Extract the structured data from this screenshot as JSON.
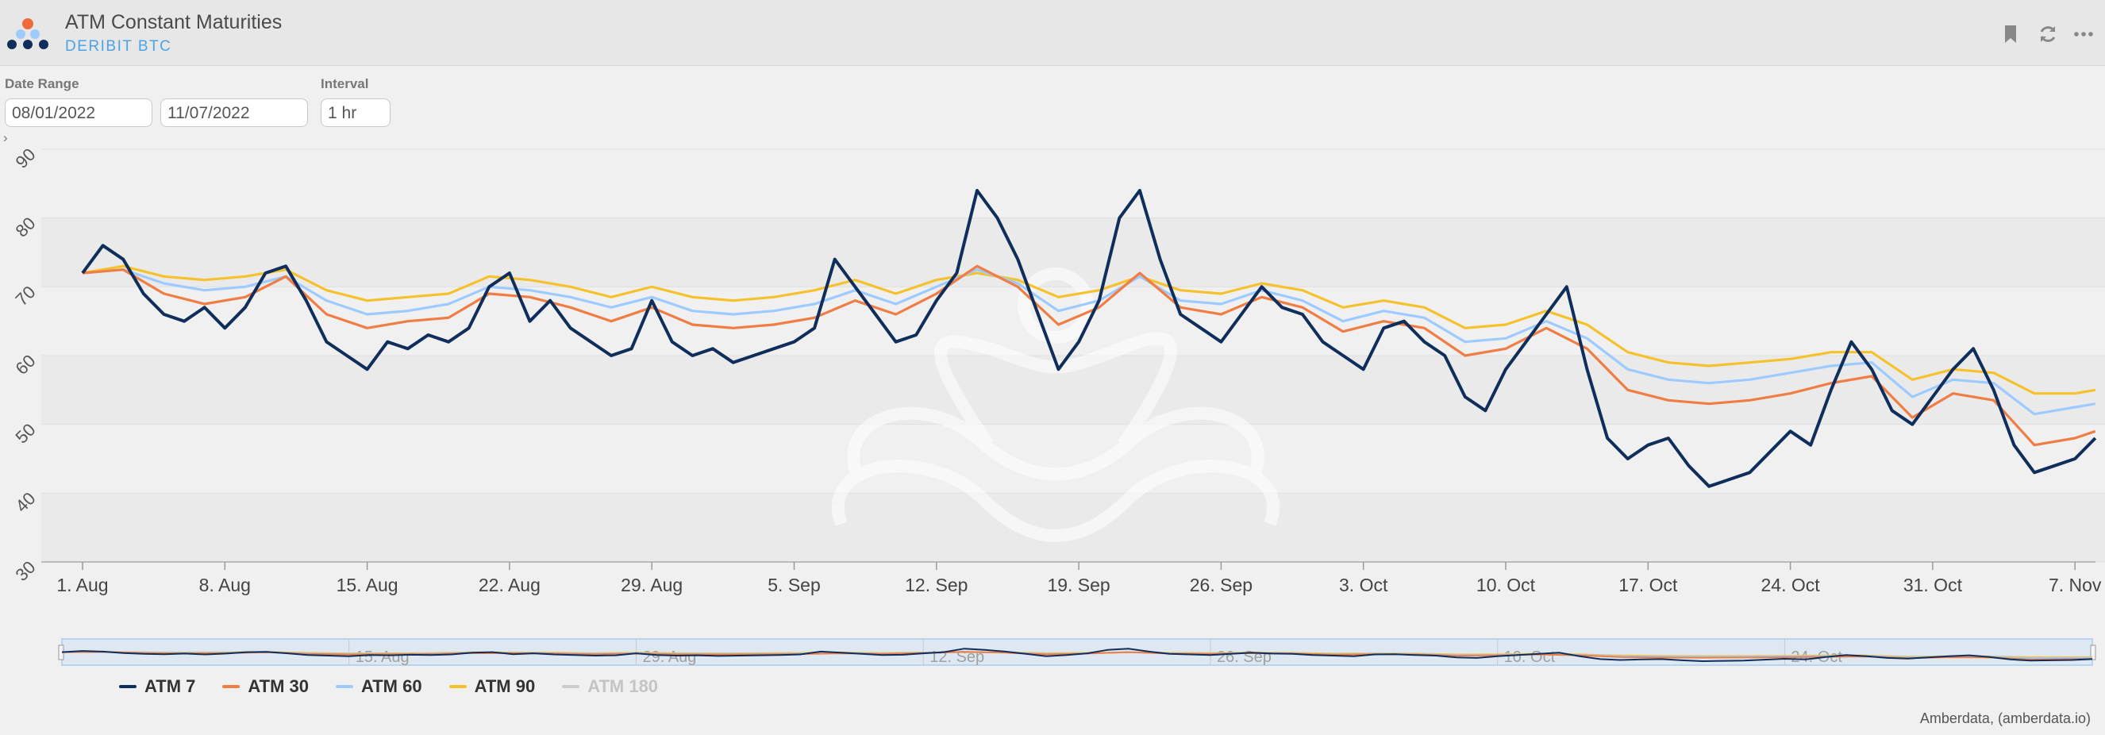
{
  "header": {
    "title": "ATM Constant Maturities",
    "subtitle": "DERIBIT BTC",
    "icons": [
      "bookmark-icon",
      "refresh-icon",
      "more-icon"
    ]
  },
  "controls": {
    "date_range_label": "Date Range",
    "start_date": "08/01/2022",
    "end_date": "11/07/2022",
    "interval_label": "Interval",
    "interval_value": "1 hr"
  },
  "colors": {
    "atm7": "#0f2e5c",
    "atm30": "#f07d44",
    "atm60": "#9ecbff",
    "atm90": "#f5c22e",
    "atm180": "#c8c8c8"
  },
  "chart_data": {
    "type": "line",
    "ylim": [
      30,
      90
    ],
    "y_ticks": [
      "30",
      "40",
      "50",
      "60",
      "70",
      "80",
      "90"
    ],
    "x_range": [
      "2022-08-01",
      "2022-11-08"
    ],
    "x_ticks": [
      "1. Aug",
      "8. Aug",
      "15. Aug",
      "22. Aug",
      "29. Aug",
      "5. Sep",
      "12. Sep",
      "19. Sep",
      "26. Sep",
      "3. Oct",
      "10. Oct",
      "17. Oct",
      "24. Oct",
      "31. Oct",
      "7. Nov"
    ],
    "x_tick_dates": [
      "2022-08-01",
      "2022-08-08",
      "2022-08-15",
      "2022-08-22",
      "2022-08-29",
      "2022-09-05",
      "2022-09-12",
      "2022-09-19",
      "2022-09-26",
      "2022-10-03",
      "2022-10-10",
      "2022-10-17",
      "2022-10-24",
      "2022-10-31",
      "2022-11-07"
    ],
    "navigator_ticks": [
      "15. Aug",
      "29. Aug",
      "12. Sep",
      "26. Sep",
      "10. Oct",
      "24. Oct"
    ],
    "navigator_tick_dates": [
      "2022-08-15",
      "2022-08-29",
      "2022-09-12",
      "2022-09-26",
      "2022-10-10",
      "2022-10-24"
    ],
    "grid": true,
    "legend_position": "bottom-left",
    "series": [
      {
        "name": "ATM 7",
        "visible": true,
        "points": [
          [
            "2022-08-01",
            72
          ],
          [
            "2022-08-02",
            76
          ],
          [
            "2022-08-03",
            74
          ],
          [
            "2022-08-04",
            69
          ],
          [
            "2022-08-05",
            66
          ],
          [
            "2022-08-06",
            65
          ],
          [
            "2022-08-07",
            67
          ],
          [
            "2022-08-08",
            64
          ],
          [
            "2022-08-09",
            67
          ],
          [
            "2022-08-10",
            72
          ],
          [
            "2022-08-11",
            73
          ],
          [
            "2022-08-12",
            68
          ],
          [
            "2022-08-13",
            62
          ],
          [
            "2022-08-14",
            60
          ],
          [
            "2022-08-15",
            58
          ],
          [
            "2022-08-16",
            62
          ],
          [
            "2022-08-17",
            61
          ],
          [
            "2022-08-18",
            63
          ],
          [
            "2022-08-19",
            62
          ],
          [
            "2022-08-20",
            64
          ],
          [
            "2022-08-21",
            70
          ],
          [
            "2022-08-22",
            72
          ],
          [
            "2022-08-23",
            65
          ],
          [
            "2022-08-24",
            68
          ],
          [
            "2022-08-25",
            64
          ],
          [
            "2022-08-26",
            62
          ],
          [
            "2022-08-27",
            60
          ],
          [
            "2022-08-28",
            61
          ],
          [
            "2022-08-29",
            68
          ],
          [
            "2022-08-30",
            62
          ],
          [
            "2022-08-31",
            60
          ],
          [
            "2022-09-01",
            61
          ],
          [
            "2022-09-02",
            59
          ],
          [
            "2022-09-03",
            60
          ],
          [
            "2022-09-04",
            61
          ],
          [
            "2022-09-05",
            62
          ],
          [
            "2022-09-06",
            64
          ],
          [
            "2022-09-07",
            74
          ],
          [
            "2022-09-08",
            70
          ],
          [
            "2022-09-09",
            66
          ],
          [
            "2022-09-10",
            62
          ],
          [
            "2022-09-11",
            63
          ],
          [
            "2022-09-12",
            68
          ],
          [
            "2022-09-13",
            72
          ],
          [
            "2022-09-14",
            84
          ],
          [
            "2022-09-15",
            80
          ],
          [
            "2022-09-16",
            74
          ],
          [
            "2022-09-17",
            66
          ],
          [
            "2022-09-18",
            58
          ],
          [
            "2022-09-19",
            62
          ],
          [
            "2022-09-20",
            68
          ],
          [
            "2022-09-21",
            80
          ],
          [
            "2022-09-22",
            84
          ],
          [
            "2022-09-23",
            74
          ],
          [
            "2022-09-24",
            66
          ],
          [
            "2022-09-25",
            64
          ],
          [
            "2022-09-26",
            62
          ],
          [
            "2022-09-27",
            66
          ],
          [
            "2022-09-28",
            70
          ],
          [
            "2022-09-29",
            67
          ],
          [
            "2022-09-30",
            66
          ],
          [
            "2022-10-01",
            62
          ],
          [
            "2022-10-02",
            60
          ],
          [
            "2022-10-03",
            58
          ],
          [
            "2022-10-04",
            64
          ],
          [
            "2022-10-05",
            65
          ],
          [
            "2022-10-06",
            62
          ],
          [
            "2022-10-07",
            60
          ],
          [
            "2022-10-08",
            54
          ],
          [
            "2022-10-09",
            52
          ],
          [
            "2022-10-10",
            58
          ],
          [
            "2022-10-11",
            62
          ],
          [
            "2022-10-12",
            66
          ],
          [
            "2022-10-13",
            70
          ],
          [
            "2022-10-14",
            58
          ],
          [
            "2022-10-15",
            48
          ],
          [
            "2022-10-16",
            45
          ],
          [
            "2022-10-17",
            47
          ],
          [
            "2022-10-18",
            48
          ],
          [
            "2022-10-19",
            44
          ],
          [
            "2022-10-20",
            41
          ],
          [
            "2022-10-21",
            42
          ],
          [
            "2022-10-22",
            43
          ],
          [
            "2022-10-23",
            46
          ],
          [
            "2022-10-24",
            49
          ],
          [
            "2022-10-25",
            47
          ],
          [
            "2022-10-26",
            55
          ],
          [
            "2022-10-27",
            62
          ],
          [
            "2022-10-28",
            58
          ],
          [
            "2022-10-29",
            52
          ],
          [
            "2022-10-30",
            50
          ],
          [
            "2022-10-31",
            54
          ],
          [
            "2022-11-01",
            58
          ],
          [
            "2022-11-02",
            61
          ],
          [
            "2022-11-03",
            55
          ],
          [
            "2022-11-04",
            47
          ],
          [
            "2022-11-05",
            43
          ],
          [
            "2022-11-06",
            44
          ],
          [
            "2022-11-07",
            45
          ],
          [
            "2022-11-08",
            48
          ]
        ]
      },
      {
        "name": "ATM 30",
        "visible": true,
        "points": [
          [
            "2022-08-01",
            72
          ],
          [
            "2022-08-03",
            72.5
          ],
          [
            "2022-08-05",
            69
          ],
          [
            "2022-08-07",
            67.5
          ],
          [
            "2022-08-09",
            68.5
          ],
          [
            "2022-08-11",
            71.5
          ],
          [
            "2022-08-13",
            66
          ],
          [
            "2022-08-15",
            64
          ],
          [
            "2022-08-17",
            65
          ],
          [
            "2022-08-19",
            65.5
          ],
          [
            "2022-08-21",
            69
          ],
          [
            "2022-08-23",
            68.5
          ],
          [
            "2022-08-25",
            67
          ],
          [
            "2022-08-27",
            65
          ],
          [
            "2022-08-29",
            67
          ],
          [
            "2022-08-31",
            64.5
          ],
          [
            "2022-09-02",
            64
          ],
          [
            "2022-09-04",
            64.5
          ],
          [
            "2022-09-06",
            65.5
          ],
          [
            "2022-09-08",
            68
          ],
          [
            "2022-09-10",
            66
          ],
          [
            "2022-09-12",
            69
          ],
          [
            "2022-09-14",
            73
          ],
          [
            "2022-09-16",
            70
          ],
          [
            "2022-09-18",
            64.5
          ],
          [
            "2022-09-20",
            67
          ],
          [
            "2022-09-22",
            72
          ],
          [
            "2022-09-24",
            67
          ],
          [
            "2022-09-26",
            66
          ],
          [
            "2022-09-28",
            68.5
          ],
          [
            "2022-09-30",
            67
          ],
          [
            "2022-10-02",
            63.5
          ],
          [
            "2022-10-04",
            65
          ],
          [
            "2022-10-06",
            64
          ],
          [
            "2022-10-08",
            60
          ],
          [
            "2022-10-10",
            61
          ],
          [
            "2022-10-12",
            64
          ],
          [
            "2022-10-14",
            61
          ],
          [
            "2022-10-16",
            55
          ],
          [
            "2022-10-18",
            53.5
          ],
          [
            "2022-10-20",
            53
          ],
          [
            "2022-10-22",
            53.5
          ],
          [
            "2022-10-24",
            54.5
          ],
          [
            "2022-10-26",
            56
          ],
          [
            "2022-10-28",
            57
          ],
          [
            "2022-10-30",
            51
          ],
          [
            "2022-11-01",
            54.5
          ],
          [
            "2022-11-03",
            53.5
          ],
          [
            "2022-11-05",
            47
          ],
          [
            "2022-11-07",
            48
          ],
          [
            "2022-11-08",
            49
          ]
        ]
      },
      {
        "name": "ATM 60",
        "visible": true,
        "points": [
          [
            "2022-08-01",
            72
          ],
          [
            "2022-08-03",
            72.5
          ],
          [
            "2022-08-05",
            70.5
          ],
          [
            "2022-08-07",
            69.5
          ],
          [
            "2022-08-09",
            70
          ],
          [
            "2022-08-11",
            71.5
          ],
          [
            "2022-08-13",
            68
          ],
          [
            "2022-08-15",
            66
          ],
          [
            "2022-08-17",
            66.5
          ],
          [
            "2022-08-19",
            67.5
          ],
          [
            "2022-08-21",
            70
          ],
          [
            "2022-08-23",
            69.5
          ],
          [
            "2022-08-25",
            68.5
          ],
          [
            "2022-08-27",
            67
          ],
          [
            "2022-08-29",
            68.5
          ],
          [
            "2022-08-31",
            66.5
          ],
          [
            "2022-09-02",
            66
          ],
          [
            "2022-09-04",
            66.5
          ],
          [
            "2022-09-06",
            67.5
          ],
          [
            "2022-09-08",
            69.5
          ],
          [
            "2022-09-10",
            67.5
          ],
          [
            "2022-09-12",
            70
          ],
          [
            "2022-09-14",
            72.5
          ],
          [
            "2022-09-16",
            70.5
          ],
          [
            "2022-09-18",
            66.5
          ],
          [
            "2022-09-20",
            68
          ],
          [
            "2022-09-22",
            71.5
          ],
          [
            "2022-09-24",
            68
          ],
          [
            "2022-09-26",
            67.5
          ],
          [
            "2022-09-28",
            69.5
          ],
          [
            "2022-09-30",
            68
          ],
          [
            "2022-10-02",
            65
          ],
          [
            "2022-10-04",
            66.5
          ],
          [
            "2022-10-06",
            65.5
          ],
          [
            "2022-10-08",
            62
          ],
          [
            "2022-10-10",
            62.5
          ],
          [
            "2022-10-12",
            65
          ],
          [
            "2022-10-14",
            62.5
          ],
          [
            "2022-10-16",
            58
          ],
          [
            "2022-10-18",
            56.5
          ],
          [
            "2022-10-20",
            56
          ],
          [
            "2022-10-22",
            56.5
          ],
          [
            "2022-10-24",
            57.5
          ],
          [
            "2022-10-26",
            58.5
          ],
          [
            "2022-10-28",
            59
          ],
          [
            "2022-10-30",
            54
          ],
          [
            "2022-11-01",
            56.5
          ],
          [
            "2022-11-03",
            56
          ],
          [
            "2022-11-05",
            51.5
          ],
          [
            "2022-11-07",
            52.5
          ],
          [
            "2022-11-08",
            53
          ]
        ]
      },
      {
        "name": "ATM 90",
        "visible": true,
        "points": [
          [
            "2022-08-01",
            72
          ],
          [
            "2022-08-03",
            73
          ],
          [
            "2022-08-05",
            71.5
          ],
          [
            "2022-08-07",
            71
          ],
          [
            "2022-08-09",
            71.5
          ],
          [
            "2022-08-11",
            72.5
          ],
          [
            "2022-08-13",
            69.5
          ],
          [
            "2022-08-15",
            68
          ],
          [
            "2022-08-17",
            68.5
          ],
          [
            "2022-08-19",
            69
          ],
          [
            "2022-08-21",
            71.5
          ],
          [
            "2022-08-23",
            71
          ],
          [
            "2022-08-25",
            70
          ],
          [
            "2022-08-27",
            68.5
          ],
          [
            "2022-08-29",
            70
          ],
          [
            "2022-08-31",
            68.5
          ],
          [
            "2022-09-02",
            68
          ],
          [
            "2022-09-04",
            68.5
          ],
          [
            "2022-09-06",
            69.5
          ],
          [
            "2022-09-08",
            71
          ],
          [
            "2022-09-10",
            69
          ],
          [
            "2022-09-12",
            71
          ],
          [
            "2022-09-14",
            72
          ],
          [
            "2022-09-16",
            71
          ],
          [
            "2022-09-18",
            68.5
          ],
          [
            "2022-09-20",
            69.5
          ],
          [
            "2022-09-22",
            71.5
          ],
          [
            "2022-09-24",
            69.5
          ],
          [
            "2022-09-26",
            69
          ],
          [
            "2022-09-28",
            70.5
          ],
          [
            "2022-09-30",
            69.5
          ],
          [
            "2022-10-02",
            67
          ],
          [
            "2022-10-04",
            68
          ],
          [
            "2022-10-06",
            67
          ],
          [
            "2022-10-08",
            64
          ],
          [
            "2022-10-10",
            64.5
          ],
          [
            "2022-10-12",
            66.5
          ],
          [
            "2022-10-14",
            64.5
          ],
          [
            "2022-10-16",
            60.5
          ],
          [
            "2022-10-18",
            59
          ],
          [
            "2022-10-20",
            58.5
          ],
          [
            "2022-10-22",
            59
          ],
          [
            "2022-10-24",
            59.5
          ],
          [
            "2022-10-26",
            60.5
          ],
          [
            "2022-10-28",
            60.5
          ],
          [
            "2022-10-30",
            56.5
          ],
          [
            "2022-11-01",
            58
          ],
          [
            "2022-11-03",
            57.5
          ],
          [
            "2022-11-05",
            54.5
          ],
          [
            "2022-11-07",
            54.5
          ],
          [
            "2022-11-08",
            55
          ]
        ]
      },
      {
        "name": "ATM 180",
        "visible": false,
        "points": []
      }
    ]
  },
  "footer": {
    "credit": "Amberdata, (amberdata.io)",
    "collapse_icon": "chevron-right-icon"
  }
}
